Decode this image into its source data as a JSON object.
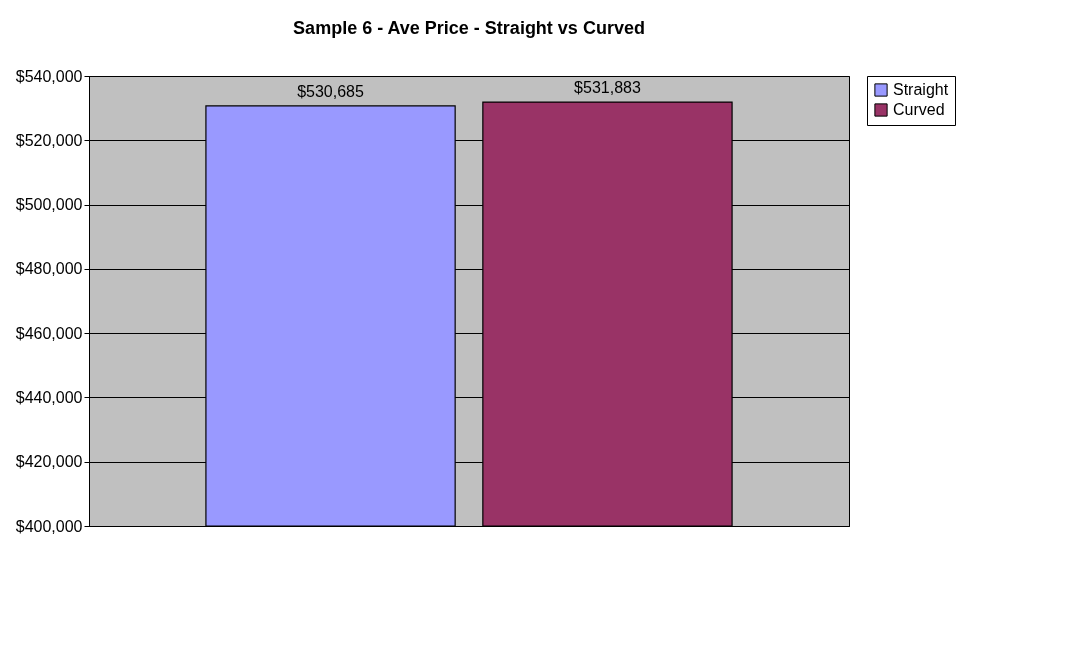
{
  "chart_data": {
    "type": "bar",
    "title": "Sample 6 - Ave Price - Straight vs Curved",
    "categories": [
      null
    ],
    "series": [
      {
        "name": "Straight",
        "color": "#9999ff",
        "values": [
          530685
        ],
        "value_labels": [
          "$530,685"
        ]
      },
      {
        "name": "Curved",
        "color": "#993366",
        "values": [
          531883
        ],
        "value_labels": [
          "$531,883"
        ]
      }
    ],
    "ylim": [
      400000,
      540000
    ],
    "yticks": [
      {
        "value": 400000,
        "label": "$400,000"
      },
      {
        "value": 420000,
        "label": "$420,000"
      },
      {
        "value": 440000,
        "label": "$440,000"
      },
      {
        "value": 460000,
        "label": "$460,000"
      },
      {
        "value": 480000,
        "label": "$480,000"
      },
      {
        "value": 500000,
        "label": "$500,000"
      },
      {
        "value": 520000,
        "label": "$520,000"
      },
      {
        "value": 540000,
        "label": "$540,000"
      }
    ],
    "grid": "y",
    "legend": "right",
    "tick_labels": "y"
  }
}
